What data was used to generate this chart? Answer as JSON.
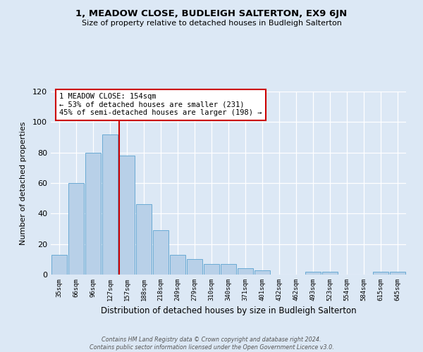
{
  "title": "1, MEADOW CLOSE, BUDLEIGH SALTERTON, EX9 6JN",
  "subtitle": "Size of property relative to detached houses in Budleigh Salterton",
  "xlabel": "Distribution of detached houses by size in Budleigh Salterton",
  "ylabel": "Number of detached properties",
  "bar_labels": [
    "35sqm",
    "66sqm",
    "96sqm",
    "127sqm",
    "157sqm",
    "188sqm",
    "218sqm",
    "249sqm",
    "279sqm",
    "310sqm",
    "340sqm",
    "371sqm",
    "401sqm",
    "432sqm",
    "462sqm",
    "493sqm",
    "523sqm",
    "554sqm",
    "584sqm",
    "615sqm",
    "645sqm"
  ],
  "bar_values": [
    13,
    60,
    80,
    92,
    78,
    46,
    29,
    13,
    10,
    7,
    7,
    4,
    3,
    0,
    0,
    2,
    2,
    0,
    0,
    2,
    2
  ],
  "bar_color": "#b8d0e8",
  "bar_edge_color": "#6aaad4",
  "vline_x_index": 4,
  "vline_color": "#cc0000",
  "annotation_title": "1 MEADOW CLOSE: 154sqm",
  "annotation_line1": "← 53% of detached houses are smaller (231)",
  "annotation_line2": "45% of semi-detached houses are larger (198) →",
  "annotation_box_color": "#ffffff",
  "annotation_box_edge": "#cc0000",
  "ylim": [
    0,
    120
  ],
  "yticks": [
    0,
    20,
    40,
    60,
    80,
    100,
    120
  ],
  "bg_color": "#dce8f5",
  "plot_bg_color": "#dce8f5",
  "footer1": "Contains HM Land Registry data © Crown copyright and database right 2024.",
  "footer2": "Contains public sector information licensed under the Open Government Licence v3.0."
}
